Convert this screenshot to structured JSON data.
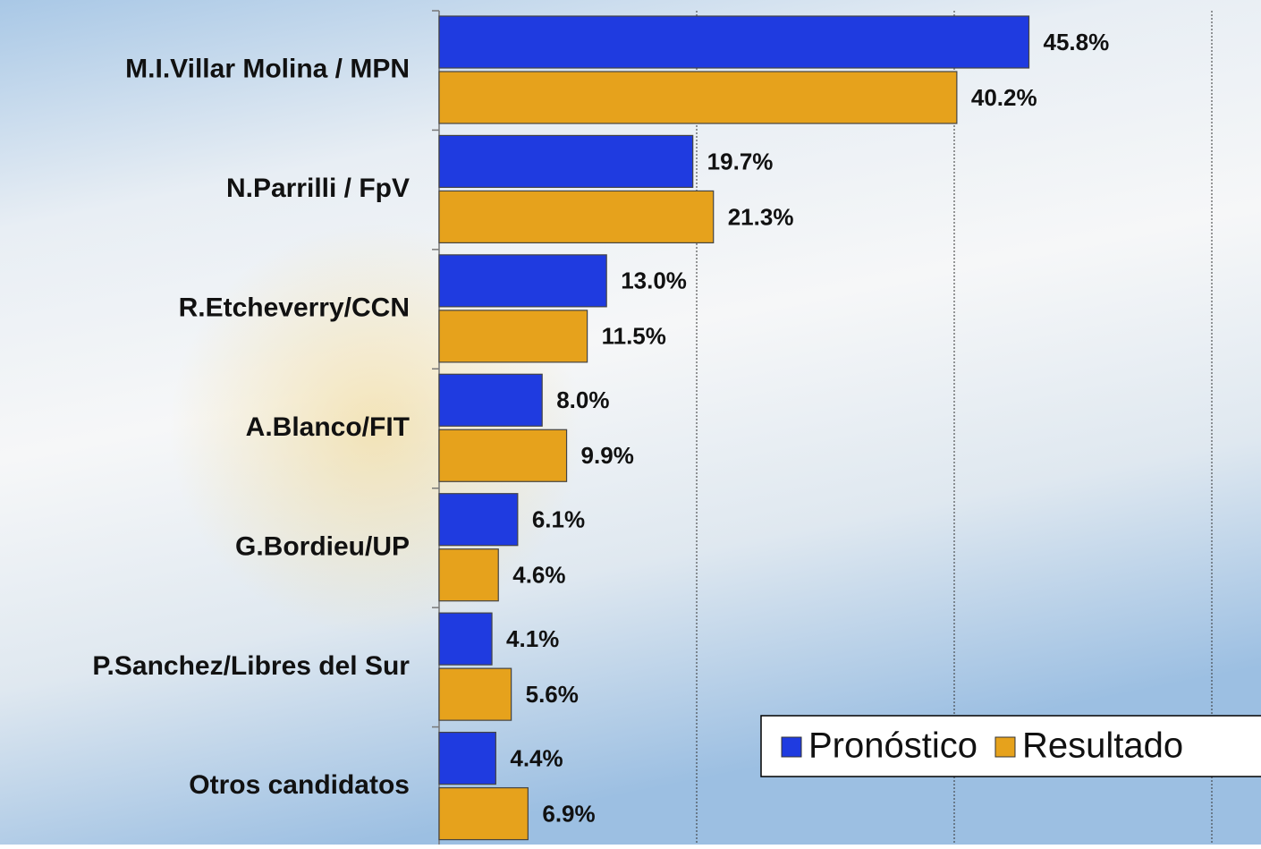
{
  "chart_data": {
    "type": "hbar",
    "categories": [
      "M.I.Villar Molina / MPN",
      "N.Parrilli / FpV",
      "R.Etcheverry/CCN",
      "A.Blanco/FIT",
      "G.Bordieu/UP",
      "P.Sanchez/Libres del Sur",
      "Otros candidatos"
    ],
    "series": [
      {
        "name": "Pronóstico",
        "color": "#1f3be0",
        "values": [
          45.8,
          19.7,
          13.0,
          8.0,
          6.1,
          4.1,
          4.4
        ],
        "value_labels": [
          "45.8%",
          "19.7%",
          "13.0%",
          "8.0%",
          "6.1%",
          "4.1%",
          "4.4%"
        ]
      },
      {
        "name": "Resultado",
        "color": "#e6a21c",
        "values": [
          40.2,
          21.3,
          11.5,
          9.9,
          4.6,
          5.6,
          6.9
        ],
        "value_labels": [
          "40.2%",
          "21.3%",
          "11.5%",
          "9.9%",
          "4.6%",
          "5.6%",
          "6.9%"
        ]
      }
    ],
    "xlim": [
      0,
      60
    ],
    "xticks": [
      20,
      40,
      60
    ],
    "show_tick_labels": false,
    "grid": true,
    "legend": "bottom-right"
  }
}
